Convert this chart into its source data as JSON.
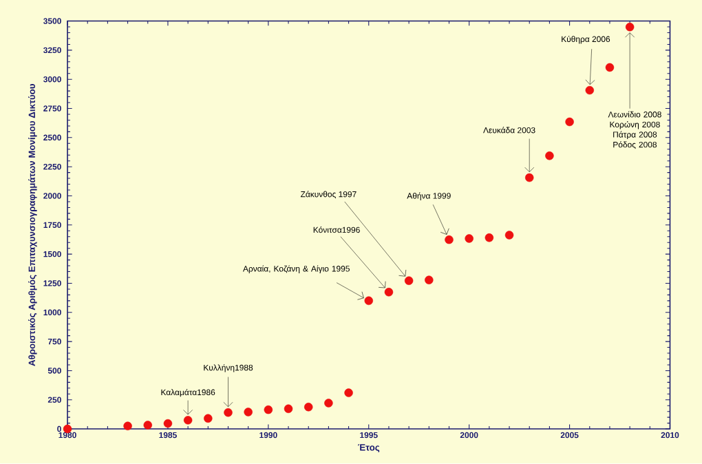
{
  "chart_data": {
    "type": "scatter",
    "xlabel": "Έτος",
    "ylabel": "Αθροιστικός Αριθμός Επιταχυνσιογραφημάτων Μονίμου Δικτύου",
    "x": [
      1980,
      1983,
      1984,
      1985,
      1986,
      1987,
      1988,
      1989,
      1990,
      1991,
      1992,
      1993,
      1994,
      1995,
      1996,
      1997,
      1998,
      1999,
      2000,
      2001,
      2002,
      2003,
      2004,
      2005,
      2006,
      2007,
      2008
    ],
    "values": [
      0,
      25,
      33,
      47,
      75,
      90,
      141,
      145,
      165,
      173,
      188,
      222,
      310,
      1100,
      1174,
      1272,
      1278,
      1624,
      1634,
      1641,
      1663,
      2156,
      2344,
      2635,
      2906,
      3102,
      3449
    ],
    "color": "#ee1111",
    "marker": "circle",
    "xlim": [
      1980,
      2010
    ],
    "xticks": [
      1980,
      1985,
      1990,
      1995,
      2000,
      2005,
      2010
    ],
    "ylim": [
      0,
      3500
    ],
    "yticks": [
      0,
      250,
      500,
      750,
      1000,
      1250,
      1500,
      1750,
      2000,
      2250,
      2500,
      2750,
      3000,
      3250,
      3500
    ],
    "grid": false,
    "annotations": [
      {
        "text": "Καλαμάτα1986",
        "x": 1986,
        "y": 75
      },
      {
        "text": "Κυλλήνη1988",
        "x": 1988,
        "y": 141
      },
      {
        "text": "Αρναία, Κοζάνη & Αίγιο 1995",
        "x": 1995,
        "y": 1100
      },
      {
        "text": "Κόνιτσα1996",
        "x": 1996,
        "y": 1174
      },
      {
        "text": "Ζάκυνθος 1997",
        "x": 1997,
        "y": 1272
      },
      {
        "text": "Αθήνα 1999",
        "x": 1999,
        "y": 1624
      },
      {
        "text": "Λευκάδα 2003",
        "x": 2003,
        "y": 2156
      },
      {
        "text": "Κύθηρα 2006",
        "x": 2006,
        "y": 2906
      },
      {
        "text": "Λεωνίδιο 2008 Κορώνη 2008 Πάτρα 2008 Ρόδος 2008",
        "x": 2008,
        "y": 3449
      }
    ]
  }
}
